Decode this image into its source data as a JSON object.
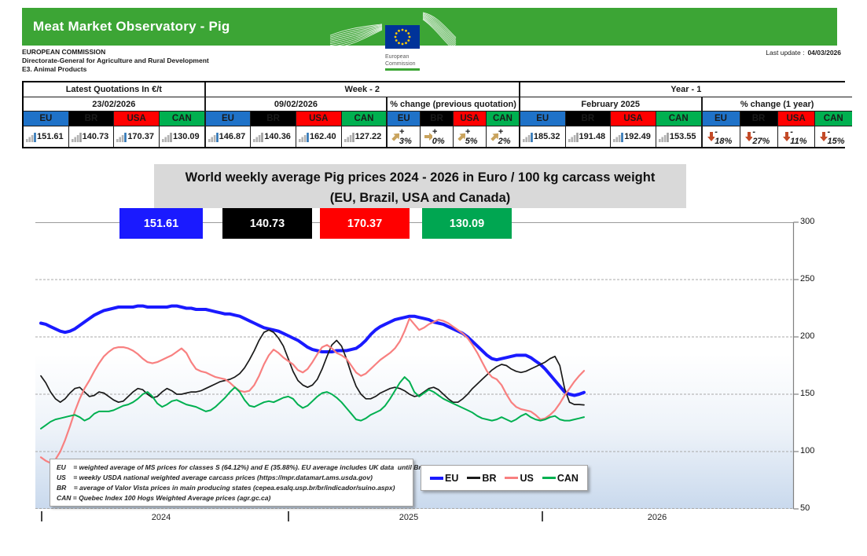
{
  "header": {
    "title": "Meat Market Observatory - Pig",
    "org_line1": "EUROPEAN COMMISSION",
    "org_line2": "Directorate-General for Agriculture and Rural Development",
    "org_line3": "E3. Animal Products",
    "last_update_label": "Last update :",
    "last_update_value": "04/03/2026",
    "logo_caption_line1": "European",
    "logo_caption_line2": "Commission"
  },
  "colors": {
    "header_green": "#3CA535",
    "table_header_blue_bg": "#C5D9F1",
    "blue_text": "#1F6FC5",
    "eu_bg": "#1F72C8",
    "br_bg": "#000000",
    "usa_bg": "#FF0000",
    "can_bg": "#00B050",
    "pct_red": "#FF0000",
    "arrow_up_tan": "#C9A35D",
    "arrow_down_red": "#C34A27",
    "title_block_gray": "#D9D9D9"
  },
  "table": {
    "group_headers": [
      {
        "label": "Latest Quotations In €/t"
      },
      {
        "label": "Week - 2"
      },
      {
        "label": "Year - 1"
      }
    ],
    "sub_headers": [
      {
        "label": "23/02/2026",
        "blue": true
      },
      {
        "label": "09/02/2026",
        "blue": true
      },
      {
        "label": "% change (previous quotation)",
        "blue": false
      },
      {
        "label": "February 2025",
        "blue": true
      },
      {
        "label": "% change (1 year)",
        "blue": false
      }
    ],
    "countries": [
      "EU",
      "BR",
      "USA",
      "CAN"
    ],
    "country_colors": [
      "#1F72C8",
      "#000000",
      "#FF0000",
      "#00B050"
    ],
    "icon_variant": [
      "blue",
      "gray",
      "blue",
      "gray"
    ],
    "values_latest": [
      "151.61",
      "140.73",
      "170.37",
      "130.09"
    ],
    "values_week2": [
      "146.87",
      "140.36",
      "162.40",
      "127.22"
    ],
    "pct_week2": [
      {
        "arrow": "up",
        "text": "+ 3%"
      },
      {
        "arrow": "right",
        "text": "+ 0%"
      },
      {
        "arrow": "up",
        "text": "+ 5%"
      },
      {
        "arrow": "up",
        "text": "+ 2%"
      }
    ],
    "values_year1": [
      "185.32",
      "191.48",
      "192.49",
      "153.55"
    ],
    "pct_year1": [
      {
        "arrow": "down",
        "text": "- 18%"
      },
      {
        "arrow": "down",
        "text": "- 27%"
      },
      {
        "arrow": "down",
        "text": "- 11%"
      },
      {
        "arrow": "down",
        "text": "- 15%"
      }
    ]
  },
  "chart": {
    "title_line1": "World weekly average Pig prices 2024 - 2026  in Euro / 100 kg carcass weight",
    "title_line2": "(EU, Brazil, USA and Canada)",
    "value_boxes": [
      {
        "label": "151.61",
        "color": "#1A1AFF"
      },
      {
        "label": "140.73",
        "color": "#000000"
      },
      {
        "label": "170.37",
        "color": "#FF0000"
      },
      {
        "label": "130.09",
        "color": "#00A651"
      }
    ],
    "y_ticks": [
      "300",
      "250",
      "200",
      "150",
      "100",
      "50"
    ],
    "x_ticks": [
      "2024",
      "2025",
      "2026"
    ],
    "legend": [
      {
        "label": "EU",
        "color": "#1A1AFF",
        "thick": true
      },
      {
        "label": "BR",
        "color": "#1a1a1a",
        "thick": false
      },
      {
        "label": "US",
        "color": "#F88080",
        "thick": false
      },
      {
        "label": "CAN",
        "color": "#00B050",
        "thick": false
      }
    ],
    "footnotes": [
      "EU    = weighted average of MS prices for classes S (64.12%) and E (35.88%). EU average includes UK data  until Brexit",
      "US    = weekly USDA national weighted average carcass prices (https://mpr.datamart.ams.usda.gov)",
      "BR    = average of Valor Vista prices in main producing states (cepea.esalq.usp.br/br/indicador/suino.aspx)",
      "CAN = Quebec Index 100 Hogs Weighted Average prices (agr.gc.ca)"
    ]
  },
  "chart_data": {
    "type": "line",
    "title": "World weekly average Pig prices 2024 - 2026 in Euro / 100 kg carcass weight (EU, Brazil, USA and Canada)",
    "ylabel": "Euro / 100 kg carcass weight",
    "ylim": [
      50,
      300
    ],
    "x_unit": "week",
    "x_start": "2024-W01",
    "x_end": "2026-W09",
    "x_year_tick_weeks": [
      0,
      52,
      104
    ],
    "grid": true,
    "legend_position": "bottom",
    "series": [
      {
        "name": "EU",
        "color": "#1A1AFF",
        "width": 4,
        "values": [
          212,
          211,
          209,
          207,
          205,
          204,
          205,
          207,
          210,
          213,
          216,
          219,
          221,
          223,
          224,
          225,
          226,
          226,
          226,
          226,
          227,
          227,
          226,
          226,
          226,
          226,
          226,
          227,
          227,
          226,
          225,
          225,
          224,
          224,
          224,
          223,
          222,
          221,
          220,
          220,
          219,
          218,
          216,
          214,
          212,
          210,
          208,
          207,
          206,
          205,
          203,
          201,
          199,
          197,
          194,
          191,
          189,
          188,
          187,
          187,
          187,
          188,
          188,
          188,
          189,
          190,
          193,
          197,
          202,
          206,
          209,
          211,
          213,
          215,
          216,
          217,
          218,
          218,
          217,
          216,
          215,
          213,
          212,
          211,
          209,
          207,
          205,
          203,
          200,
          196,
          192,
          188,
          184,
          181,
          180,
          181,
          182,
          183,
          184,
          184,
          184,
          182,
          179,
          176,
          172,
          167,
          162,
          157,
          152,
          150,
          149,
          150,
          151.6
        ]
      },
      {
        "name": "BR",
        "color": "#1a1a1a",
        "width": 1.7,
        "values": [
          166,
          160,
          152,
          146,
          143,
          146,
          151,
          155,
          156,
          152,
          148,
          149,
          152,
          151,
          148,
          145,
          143,
          144,
          148,
          152,
          155,
          154,
          150,
          147,
          148,
          152,
          155,
          153,
          150,
          150,
          151,
          152,
          152,
          153,
          155,
          157,
          159,
          161,
          162,
          163,
          165,
          168,
          173,
          180,
          188,
          197,
          204,
          206,
          204,
          199,
          192,
          181,
          170,
          162,
          158,
          156,
          158,
          163,
          172,
          183,
          193,
          197,
          192,
          181,
          168,
          157,
          150,
          146,
          146,
          148,
          151,
          153,
          155,
          156,
          155,
          153,
          150,
          148,
          149,
          152,
          155,
          156,
          154,
          150,
          146,
          143,
          143,
          146,
          150,
          155,
          159,
          163,
          167,
          171,
          174,
          176,
          175,
          172,
          170,
          169,
          170,
          172,
          174,
          176,
          178,
          181,
          183,
          175,
          155,
          143,
          141,
          141,
          140.7
        ]
      },
      {
        "name": "US",
        "color": "#F88080",
        "width": 2.2,
        "values": [
          95,
          92,
          90,
          93,
          100,
          110,
          122,
          135,
          146,
          155,
          162,
          170,
          177,
          183,
          187,
          190,
          191,
          191,
          190,
          188,
          185,
          181,
          178,
          177,
          178,
          180,
          182,
          184,
          187,
          190,
          186,
          178,
          172,
          170,
          169,
          167,
          165,
          164,
          163,
          160,
          156,
          153,
          152,
          153,
          158,
          166,
          176,
          184,
          189,
          186,
          182,
          179,
          176,
          171,
          169,
          172,
          178,
          185,
          191,
          193,
          190,
          186,
          184,
          181,
          175,
          169,
          166,
          168,
          172,
          176,
          180,
          183,
          186,
          190,
          196,
          205,
          216,
          211,
          206,
          208,
          211,
          213,
          215,
          214,
          212,
          209,
          206,
          203,
          199,
          193,
          186,
          178,
          170,
          165,
          163,
          158,
          150,
          143,
          139,
          137,
          136,
          135,
          132,
          128,
          129,
          132,
          136,
          142,
          149,
          155,
          161,
          166,
          170.4
        ]
      },
      {
        "name": "CAN",
        "color": "#00B050",
        "width": 2,
        "values": [
          120,
          123,
          126,
          128,
          129,
          130,
          131,
          132,
          130,
          127,
          129,
          133,
          135,
          135,
          135,
          136,
          138,
          140,
          141,
          143,
          146,
          150,
          152,
          148,
          142,
          139,
          141,
          144,
          145,
          143,
          141,
          140,
          139,
          137,
          135,
          136,
          139,
          143,
          147,
          152,
          156,
          152,
          145,
          140,
          139,
          141,
          143,
          144,
          143,
          145,
          147,
          148,
          146,
          141,
          138,
          140,
          144,
          148,
          151,
          152,
          150,
          147,
          143,
          138,
          133,
          128,
          127,
          129,
          132,
          134,
          136,
          140,
          146,
          153,
          160,
          165,
          161,
          152,
          148,
          151,
          154,
          152,
          149,
          146,
          144,
          142,
          140,
          138,
          136,
          134,
          131,
          129,
          128,
          127,
          128,
          130,
          128,
          126,
          128,
          131,
          133,
          130,
          128,
          127,
          128,
          130,
          131,
          128,
          127,
          127,
          128,
          129,
          130.1
        ]
      }
    ]
  }
}
